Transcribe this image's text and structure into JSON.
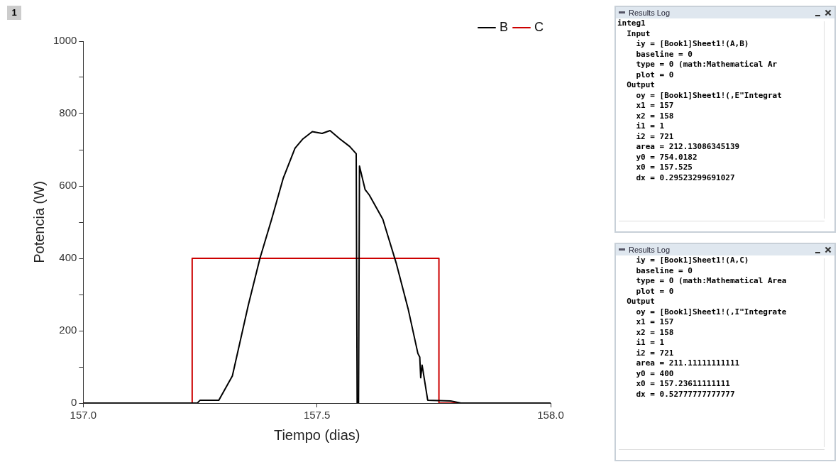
{
  "chart_data": {
    "type": "line",
    "xlabel": "Tiempo (dias)",
    "ylabel": "Potencia (W)",
    "xlim": [
      157.0,
      158.0
    ],
    "xticks": [
      {
        "value": 157.0,
        "label": "157.0"
      },
      {
        "value": 157.5,
        "label": "157.5"
      },
      {
        "value": 158.0,
        "label": "158.0"
      }
    ],
    "ylim": [
      0,
      1000
    ],
    "yticks": [
      0,
      {
        "value": 100,
        "label": null
      },
      200,
      {
        "value": 300,
        "label": null
      },
      400,
      {
        "value": 500,
        "label": null
      },
      600,
      {
        "value": 700,
        "label": null
      },
      800,
      {
        "value": 900,
        "label": null
      },
      1000
    ],
    "grid": false,
    "legend": "top right",
    "marker": "none",
    "line_style": "solid",
    "series": [
      {
        "name": "B",
        "color": "#000000",
        "x": [
          157.0,
          157.244,
          157.25,
          157.29,
          157.319,
          157.353,
          157.378,
          157.403,
          157.428,
          157.453,
          157.47,
          157.49,
          157.511,
          157.528,
          157.549,
          157.57,
          157.584,
          157.586,
          157.589,
          157.591,
          157.603,
          157.612,
          157.641,
          157.653,
          157.67,
          157.695,
          157.716,
          157.72,
          157.722,
          157.725,
          157.737,
          157.786,
          157.808,
          158.0
        ],
        "values": [
          0,
          0,
          8,
          8,
          75,
          270,
          400,
          508,
          622,
          704,
          730,
          750,
          745,
          753,
          730,
          709,
          689,
          0,
          0,
          655,
          590,
          575,
          508,
          457,
          385,
          261,
          137,
          127,
          70,
          105,
          8,
          6,
          0,
          0
        ]
      },
      {
        "name": "C",
        "color": "#cc0000",
        "x": [
          157.0,
          157.233,
          157.233,
          157.761,
          157.761,
          158.0
        ],
        "values": [
          0,
          0,
          400,
          400,
          0,
          0
        ]
      }
    ],
    "annotations": [
      "1",
      "Results Log\ninteg1\n  Input\n    iy = [Book1]Sheet1!(A,B)\n    baseline = 0\n    type = 0 (math:Mathematical Ar\n    plot = 0\n  Output\n    oy = [Book1]Sheet1!(,E\"Integrat\n    x1 = 157\n    x2 = 158\n    i1 = 1\n    i2 = 721\n    area = 212.13086345139\n    y0 = 754.0182\n    x0 = 157.525\n    dx = 0.29523299691027",
      "Results Log\n    iy = [Book1]Sheet1!(A,C)\n    baseline = 0\n    type = 0 (math:Mathematical Area\n    plot = 0\n  Output\n    oy = [Book1]Sheet1!(,I\"Integrate\n    x1 = 157\n    x2 = 158\n    i1 = 1\n    i2 = 721\n    area = 211.11111111111\n    y0 = 400\n    x0 = 157.23611111111\n    dx = 0.52777777777777"
    ]
  }
}
